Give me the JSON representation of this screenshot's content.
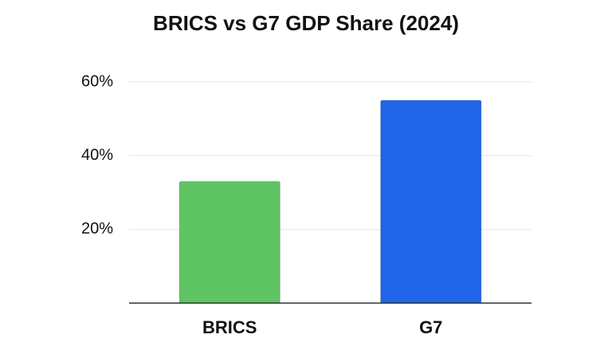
{
  "chart_data": {
    "type": "bar",
    "title": "BRICS vs G7 GDP Share (2024)",
    "categories": [
      "BRICS",
      "G7"
    ],
    "values": [
      33,
      55
    ],
    "colors": [
      "#5fc463",
      "#2166e8"
    ],
    "ylim": [
      0,
      60
    ],
    "yticks": [
      {
        "value": 20,
        "label": "20%"
      },
      {
        "value": 40,
        "label": "40%"
      },
      {
        "value": 60,
        "label": "60%"
      }
    ],
    "grid": true
  }
}
